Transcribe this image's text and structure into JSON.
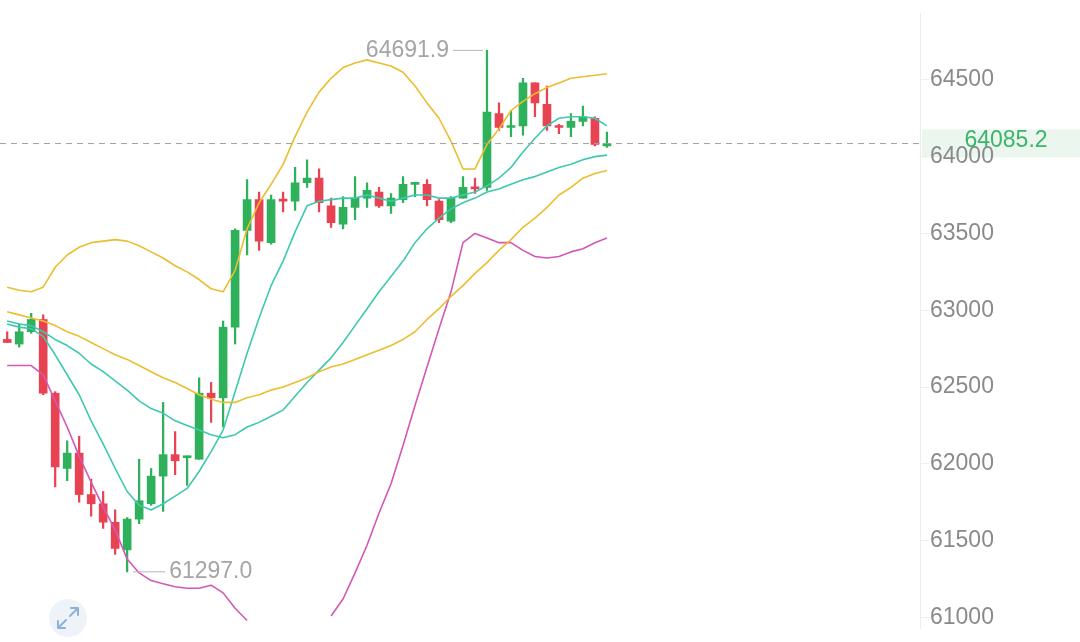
{
  "chart_data": {
    "type": "candlestick",
    "categories": [
      null,
      null,
      null,
      null,
      null,
      null,
      null,
      null,
      null,
      null,
      null,
      null,
      null,
      null,
      null,
      null,
      null,
      null,
      null,
      null,
      null,
      null,
      null,
      null,
      null,
      null,
      null,
      null,
      null,
      null,
      null,
      null,
      null,
      null,
      null,
      null,
      null,
      null,
      null,
      null,
      null,
      null,
      null,
      null,
      null,
      null,
      null,
      null,
      null,
      null,
      null
    ],
    "ohlc": [
      [
        62810,
        62860,
        62790,
        62790
      ],
      [
        62780,
        62910,
        62760,
        62860
      ],
      [
        62860,
        62980,
        62850,
        62940
      ],
      [
        62940,
        62970,
        62450,
        62460
      ],
      [
        62460,
        62470,
        61850,
        61980
      ],
      [
        61970,
        62150,
        61890,
        62070
      ],
      [
        62070,
        62180,
        61750,
        61800
      ],
      [
        61800,
        61900,
        61660,
        61740
      ],
      [
        61740,
        61820,
        61580,
        61620
      ],
      [
        61620,
        61700,
        61410,
        61450
      ],
      [
        61440,
        61650,
        61297.0,
        61640
      ],
      [
        61640,
        62030,
        61610,
        61760
      ],
      [
        61740,
        61970,
        61730,
        61920
      ],
      [
        61920,
        62400,
        61690,
        62060
      ],
      [
        62060,
        62210,
        61930,
        62020
      ],
      [
        62040,
        62050,
        61860,
        62050
      ],
      [
        62030,
        62560,
        62030,
        62460
      ],
      [
        62460,
        62530,
        62270,
        62430
      ],
      [
        62430,
        62930,
        62240,
        62890
      ],
      [
        62890,
        63530,
        62780,
        63520
      ],
      [
        63520,
        63850,
        63360,
        63720
      ],
      [
        63720,
        63770,
        63390,
        63450
      ],
      [
        63440,
        63750,
        63430,
        63720
      ],
      [
        63720,
        63770,
        63640,
        63710
      ],
      [
        63710,
        63930,
        63650,
        63830
      ],
      [
        63830,
        63980,
        63800,
        63860
      ],
      [
        63860,
        63920,
        63640,
        63700
      ],
      [
        63680,
        63730,
        63540,
        63570
      ],
      [
        63560,
        63740,
        63530,
        63670
      ],
      [
        63670,
        63870,
        63590,
        63730
      ],
      [
        63730,
        63830,
        63670,
        63780
      ],
      [
        63770,
        63800,
        63670,
        63680
      ],
      [
        63680,
        63760,
        63630,
        63730
      ],
      [
        63720,
        63870,
        63700,
        63820
      ],
      [
        63820,
        63830,
        63740,
        63830
      ],
      [
        63820,
        63850,
        63680,
        63720
      ],
      [
        63710,
        63720,
        63570,
        63590
      ],
      [
        63580,
        63740,
        63570,
        63730
      ],
      [
        63730,
        63870,
        63730,
        63800
      ],
      [
        63800,
        63860,
        63760,
        63790
      ],
      [
        63800,
        64691.9,
        63780,
        64290
      ],
      [
        64280,
        64350,
        64170,
        64190
      ],
      [
        64190,
        64300,
        64130,
        64200
      ],
      [
        64200,
        64510,
        64140,
        64480
      ],
      [
        64480,
        64480,
        64260,
        64350
      ],
      [
        64340,
        64460,
        64170,
        64200
      ],
      [
        64200,
        64210,
        64150,
        64190
      ],
      [
        64190,
        64280,
        64130,
        64230
      ],
      [
        64230,
        64330,
        64200,
        64260
      ],
      [
        64250,
        64260,
        64070,
        64080
      ],
      [
        64070,
        64160,
        64060,
        64085.2
      ]
    ],
    "colors": [
      "#e84352",
      "#2fb15c",
      "#2fb15c",
      "#e84352",
      "#e84352",
      "#2fb15c",
      "#e84352",
      "#e84352",
      "#e84352",
      "#e84352",
      "#2fb15c",
      "#2fb15c",
      "#2fb15c",
      "#2fb15c",
      "#e84352",
      "#2fb15c",
      "#2fb15c",
      "#e84352",
      "#2fb15c",
      "#2fb15c",
      "#2fb15c",
      "#e84352",
      "#2fb15c",
      "#e84352",
      "#2fb15c",
      "#2fb15c",
      "#e84352",
      "#e84352",
      "#2fb15c",
      "#2fb15c",
      "#2fb15c",
      "#e84352",
      "#2fb15c",
      "#2fb15c",
      "#2fb15c",
      "#e84352",
      "#e84352",
      "#2fb15c",
      "#2fb15c",
      "#e84352",
      "#2fb15c",
      "#e84352",
      "#2fb15c",
      "#2fb15c",
      "#e84352",
      "#e84352",
      "#e84352",
      "#2fb15c",
      "#2fb15c",
      "#e84352",
      "#2fb15c"
    ],
    "series": [
      {
        "type": "line",
        "color": "#ecbd2f",
        "values": [
          63150,
          63130,
          63120,
          63150,
          63280,
          63360,
          63410,
          63440,
          63450,
          63460,
          63450,
          63420,
          63380,
          63340,
          63290,
          63250,
          63200,
          63140,
          63120,
          63260,
          63530,
          63700,
          63820,
          63950,
          64130,
          64290,
          64420,
          64510,
          64580,
          64610,
          64630,
          64610,
          64590,
          64550,
          64460,
          64350,
          64250,
          64100,
          63920,
          63920,
          64080,
          64180,
          64300,
          64360,
          64410,
          64450,
          64480,
          64510,
          64520,
          64530,
          64540
        ]
      },
      {
        "type": "line",
        "color": "#ecbd2f",
        "values": [
          62990,
          62970,
          62950,
          62930,
          62900,
          62860,
          62830,
          62790,
          62750,
          62710,
          62680,
          62640,
          62600,
          62560,
          62530,
          62490,
          62450,
          62420,
          62400,
          62400,
          62430,
          62450,
          62480,
          62500,
          62530,
          62560,
          62600,
          62630,
          62650,
          62680,
          62710,
          62740,
          62770,
          62810,
          62860,
          62940,
          63010,
          63090,
          63160,
          63240,
          63310,
          63390,
          63460,
          63540,
          63600,
          63670,
          63750,
          63800,
          63860,
          63890,
          63910
        ]
      },
      {
        "type": "line",
        "color": "#3ec8b0",
        "values": [
          62910,
          62890,
          62880,
          62830,
          62710,
          62580,
          62450,
          62280,
          62130,
          61970,
          61820,
          61730,
          61700,
          61740,
          61790,
          61840,
          61950,
          62080,
          62220,
          62470,
          62720,
          62950,
          63160,
          63320,
          63510,
          63680,
          63710,
          63720,
          63730,
          63730,
          63750,
          63730,
          63710,
          63730,
          63750,
          63750,
          63730,
          63730,
          63750,
          63770,
          63810,
          63860,
          63930,
          64030,
          64120,
          64200,
          64250,
          64260,
          64260,
          64250,
          64200
        ]
      },
      {
        "type": "line",
        "color": "#3ec8b0",
        "values": [
          62930,
          62910,
          62900,
          62860,
          62810,
          62770,
          62720,
          62650,
          62600,
          62540,
          62480,
          62410,
          62360,
          62330,
          62280,
          62250,
          62220,
          62190,
          62170,
          62190,
          62240,
          62270,
          62310,
          62350,
          62440,
          62530,
          62610,
          62690,
          62790,
          62900,
          63010,
          63120,
          63220,
          63320,
          63440,
          63530,
          63600,
          63660,
          63700,
          63730,
          63770,
          63790,
          63820,
          63850,
          63870,
          63900,
          63930,
          63950,
          63980,
          64000,
          64010
        ]
      },
      {
        "type": "line",
        "color": "#d457b6",
        "values": [
          62640,
          62640,
          62640,
          62580,
          62410,
          62240,
          62050,
          61880,
          61720,
          61570,
          61380,
          61290,
          61240,
          61220,
          61200,
          61190,
          61190,
          61210,
          61160,
          61060,
          60980,
          null,
          null,
          null,
          null,
          null,
          null,
          61010,
          61120,
          61290,
          61470,
          61680,
          61870,
          62120,
          62380,
          62630,
          62880,
          63120,
          63440,
          63500,
          63470,
          63440,
          63440,
          63390,
          63350,
          63340,
          63350,
          63380,
          63400,
          63440,
          63470
        ]
      }
    ],
    "ylim": [
      60930,
      64930
    ],
    "yticks": [
      61000,
      61500,
      62000,
      62500,
      63000,
      63500,
      64000,
      64500
    ],
    "ref_lines": [
      {
        "axis": "y",
        "value": 64085.2,
        "label": "64085.2",
        "line_style": "dashed"
      }
    ],
    "annotations": [
      "64691.9",
      "61297.0"
    ],
    "tick_labels": "y",
    "grid": false,
    "legend": false
  }
}
